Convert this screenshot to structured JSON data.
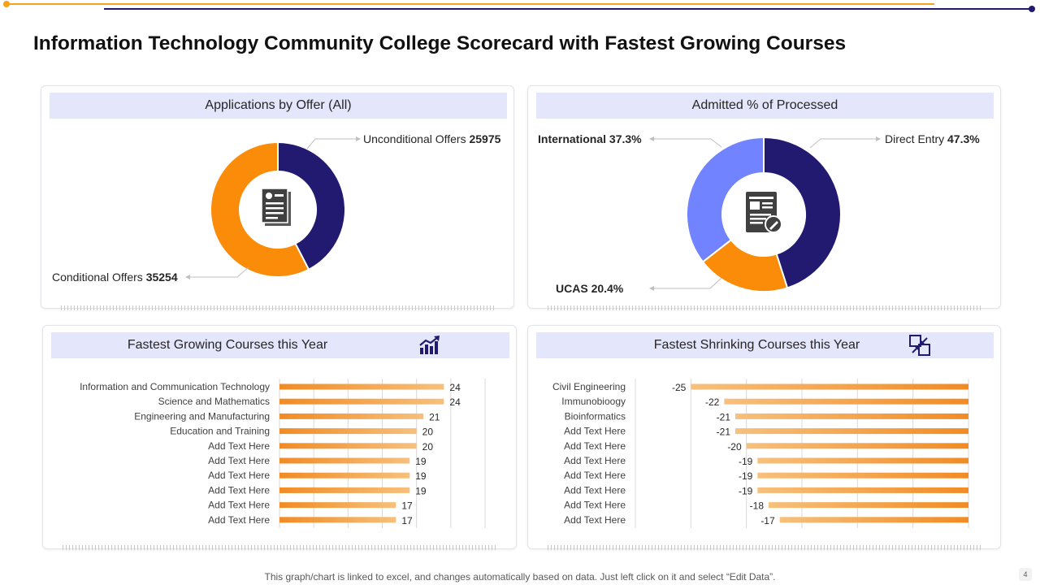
{
  "page": {
    "title": "Information Technology Community College Scorecard with Fastest Growing Courses",
    "footer_note": "This graph/chart is linked to excel,  and changes automatically based on data. Just left click on it and select “Edit Data”.",
    "page_number": "4"
  },
  "colors": {
    "navy": "#221a70",
    "orange": "#fa8c0a",
    "periwinkle": "#7183ff",
    "header_bg": "#e4e6fb",
    "bar_start": "#f18b24",
    "bar_end": "#f7c07c"
  },
  "panels": {
    "applications": {
      "title": "Applications by Offer (All)",
      "center_icon": "document-icon"
    },
    "admitted": {
      "title": "Admitted % of Processed",
      "center_icon": "form-edit-icon"
    },
    "growing": {
      "title": "Fastest Growing Courses this Year",
      "header_icon": "growth-chart-icon"
    },
    "shrinking": {
      "title": "Fastest Shrinking Courses this Year",
      "header_icon": "shrink-arrows-icon"
    }
  },
  "chart_data": [
    {
      "id": "applications",
      "type": "pie",
      "title": "Applications by Offer (All)",
      "labels": [
        "Unconditional Offers",
        "Conditional Offers"
      ],
      "values": [
        25975,
        35254
      ],
      "value_labels": [
        "25975",
        "35254"
      ],
      "colors": [
        "#221a70",
        "#fa8c0a"
      ]
    },
    {
      "id": "admitted",
      "type": "pie",
      "title": "Admitted % of Processed",
      "labels": [
        "Direct Entry",
        "UCAS",
        "International"
      ],
      "values": [
        47.3,
        20.4,
        37.3
      ],
      "value_labels": [
        "47.3%",
        "20.4%",
        "37.3%"
      ],
      "colors": [
        "#221a70",
        "#fa8c0a",
        "#7183ff"
      ]
    },
    {
      "id": "growing",
      "type": "bar",
      "orientation": "horizontal",
      "title": "Fastest Growing Courses this Year",
      "categories": [
        "Information and Communication Technology",
        "Science and Mathematics",
        "Engineering and Manufacturing",
        "Education and Training",
        "Add Text Here",
        "Add Text Here",
        "Add Text Here",
        "Add Text Here",
        "Add Text Here",
        "Add Text Here"
      ],
      "values": [
        24,
        24,
        21,
        20,
        20,
        19,
        19,
        19,
        17,
        17
      ],
      "xlim": [
        0,
        30
      ],
      "grid": true
    },
    {
      "id": "shrinking",
      "type": "bar",
      "orientation": "horizontal",
      "title": "Fastest Shrinking Courses this Year",
      "categories": [
        "Civil Engineering",
        "Immunobioogy",
        "Bioinformatics",
        "Add Text Here",
        "Add Text Here",
        "Add Text Here",
        "Add Text Here",
        "Add Text Here",
        "Add Text Here",
        "Add Text Here"
      ],
      "values": [
        -25,
        -22,
        -21,
        -21,
        -20,
        -19,
        -19,
        -19,
        -18,
        -17
      ],
      "xlim": [
        -30,
        0
      ],
      "grid": true
    }
  ]
}
